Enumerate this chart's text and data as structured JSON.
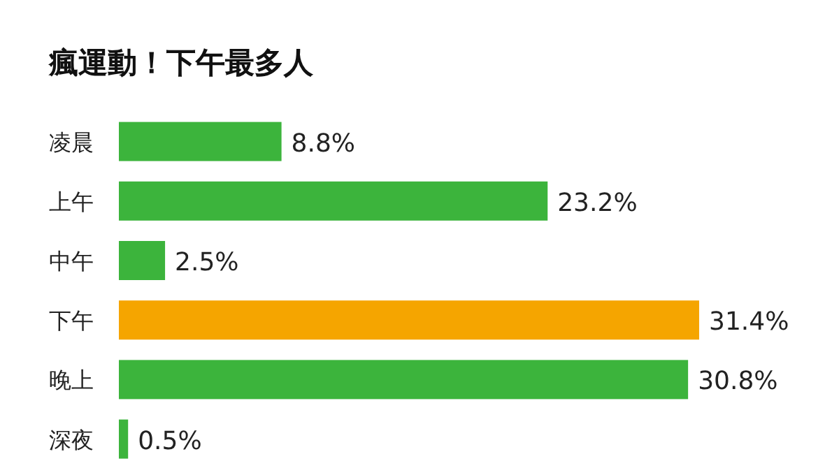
{
  "chart_data": {
    "type": "bar",
    "orientation": "horizontal",
    "title": "瘋運動！下午最多人",
    "categories": [
      "凌晨",
      "上午",
      "中午",
      "下午",
      "晚上",
      "深夜"
    ],
    "values": [
      8.8,
      23.2,
      2.5,
      31.4,
      30.8,
      0.5
    ],
    "colors": [
      "#3cb43c",
      "#3cb43c",
      "#3cb43c",
      "#f5a500",
      "#3cb43c",
      "#3cb43c"
    ],
    "value_labels": [
      "8.8%",
      "23.2%",
      "2.5%",
      "31.4%",
      "30.8%",
      "0.5%"
    ]
  }
}
